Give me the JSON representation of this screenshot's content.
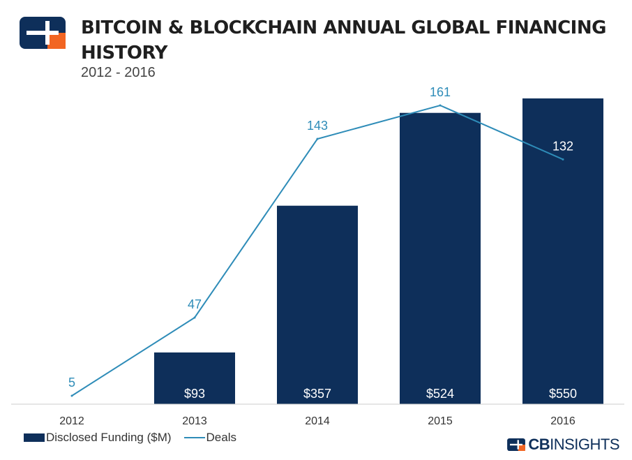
{
  "header": {
    "title": "BITCOIN & BLOCKCHAIN ANNUAL GLOBAL FINANCING HISTORY",
    "subtitle": "2012 - 2016"
  },
  "legend": {
    "bar_label": "Disclosed Funding ($M)",
    "line_label": "Deals"
  },
  "brand": {
    "prefix": "CB",
    "suffix": "INSIGHTS"
  },
  "colors": {
    "bar": "#0e2f5a",
    "line": "#2e8cb8",
    "logo_orange": "#f26522",
    "baseline": "#cccccc"
  },
  "chart_data": {
    "type": "bar+line",
    "title": "BITCOIN & BLOCKCHAIN ANNUAL GLOBAL FINANCING HISTORY",
    "subtitle": "2012 - 2016",
    "categories": [
      "2012",
      "2013",
      "2014",
      "2015",
      "2016"
    ],
    "series": [
      {
        "name": "Disclosed Funding ($M)",
        "type": "bar",
        "values": [
          0,
          93,
          357,
          524,
          550
        ],
        "labels": [
          "",
          "$93",
          "$357",
          "$524",
          "$550"
        ]
      },
      {
        "name": "Deals",
        "type": "line",
        "values": [
          5,
          47,
          143,
          161,
          132
        ],
        "labels": [
          "5",
          "47",
          "143",
          "161",
          "132"
        ]
      }
    ],
    "bar_ylim": [
      0,
      550
    ],
    "line_ylim": [
      0,
      161
    ],
    "grid": false,
    "legend_position": "bottom-left"
  }
}
